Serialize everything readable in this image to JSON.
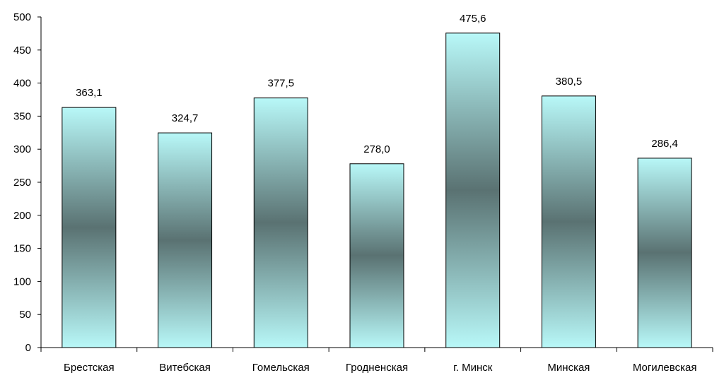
{
  "chart_data": {
    "type": "bar",
    "categories": [
      "Брестская",
      "Витебская",
      "Гомельская",
      "Гродненская",
      "г. Минск",
      "Минская",
      "Могилевская"
    ],
    "values": [
      363.1,
      324.7,
      377.5,
      278.0,
      475.6,
      380.5,
      286.4
    ],
    "value_labels": [
      "363,1",
      "324,7",
      "377,5",
      "278,0",
      "475,6",
      "380,5",
      "286,4"
    ],
    "title": "",
    "xlabel": "",
    "ylabel": "",
    "ylim": [
      0,
      500
    ],
    "y_ticks": [
      0,
      50,
      100,
      150,
      200,
      250,
      300,
      350,
      400,
      450,
      500
    ],
    "grid": false,
    "colors": {
      "bar_edge": "#b8f8f8",
      "bar_mid": "#5a7272",
      "bar_border": "#000000",
      "axis": "#000000"
    }
  }
}
